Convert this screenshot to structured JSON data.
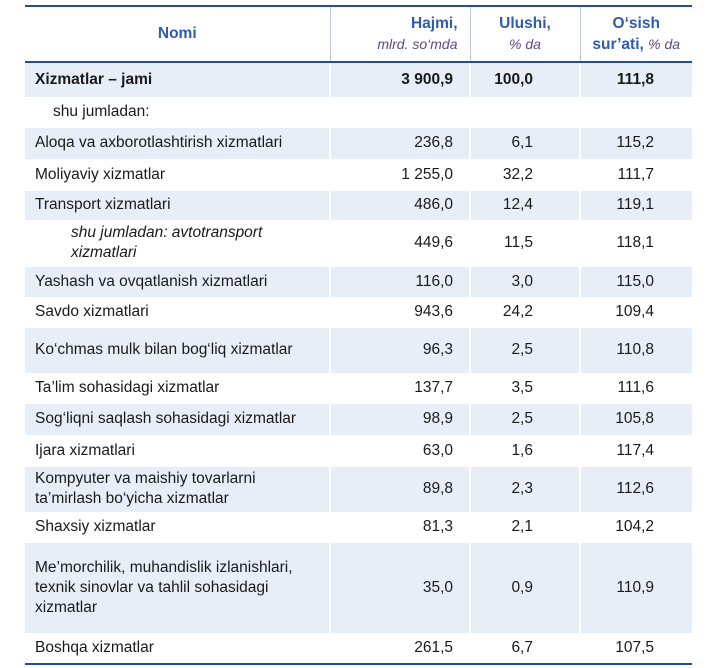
{
  "header": {
    "name": "Nomi",
    "volume": "Hajmi,",
    "volume_unit": "mlrd. so‘mda",
    "share": "Ulushi,",
    "share_unit": "% da",
    "growth": "O‘sish",
    "growth_rest": "sur’ati,",
    "growth_unit": "% da"
  },
  "rows": [
    {
      "name": "Xizmatlar – jami",
      "volume": "3 900,9",
      "share": "100,0",
      "growth": "111,8"
    },
    {
      "name": "shu jumladan:",
      "volume": "",
      "share": "",
      "growth": ""
    },
    {
      "name": "Aloqa va axborotlashtirish xizmatlari",
      "volume": "236,8",
      "share": "6,1",
      "growth": "115,2"
    },
    {
      "name": "Moliyaviy xizmatlar",
      "volume": "1 255,0",
      "share": "32,2",
      "growth": "111,7"
    },
    {
      "name": "Transport xizmatlari",
      "volume": "486,0",
      "share": "12,4",
      "growth": "119,1"
    },
    {
      "name": "shu jumladan: avtotransport xizmatlari",
      "volume": "449,6",
      "share": "11,5",
      "growth": "118,1"
    },
    {
      "name": "Yashash va ovqatlanish xizmatlari",
      "volume": "116,0",
      "share": "3,0",
      "growth": "115,0"
    },
    {
      "name": "Savdo xizmatlari",
      "volume": "943,6",
      "share": "24,2",
      "growth": "109,4"
    },
    {
      "name": "Ko‘chmas mulk bilan bog‘liq xizmatlar",
      "volume": "96,3",
      "share": "2,5",
      "growth": "110,8"
    },
    {
      "name": "Ta’lim sohasidagi xizmatlar",
      "volume": "137,7",
      "share": "3,5",
      "growth": "111,6"
    },
    {
      "name": "Sog‘liqni saqlash sohasidagi xizmatlar",
      "volume": "98,9",
      "share": "2,5",
      "growth": "105,8"
    },
    {
      "name": "Ijara xizmatlari",
      "volume": "63,0",
      "share": "1,6",
      "growth": "117,4"
    },
    {
      "name": "Kompyuter va maishiy tovarlarni ta’mirlash bo‘yicha xizmatlar",
      "volume": "89,8",
      "share": "2,3",
      "growth": "112,6"
    },
    {
      "name": "Shaxsiy xizmatlar",
      "volume": "81,3",
      "share": "2,1",
      "growth": "104,2"
    },
    {
      "name": "Me’morchilik, muhandislik izlanishlari, texnik  sinovlar va tahlil sohasidagi xizmatlar",
      "volume": "35,0",
      "share": "0,9",
      "growth": "110,9"
    },
    {
      "name": "Boshqa xizmatlar",
      "volume": "261,5",
      "share": "6,7",
      "growth": "107,5"
    }
  ]
}
